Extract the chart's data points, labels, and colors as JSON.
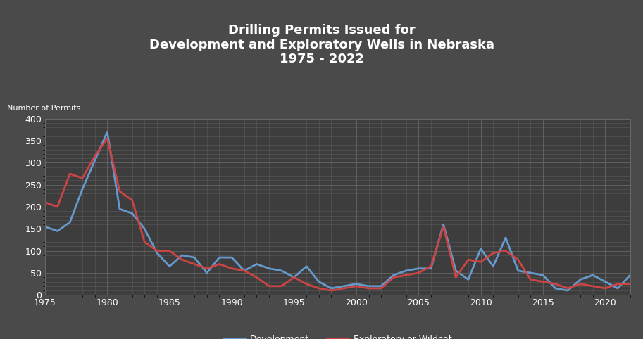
{
  "title": "Drilling Permits Issued for\nDevelopment and Exploratory Wells in Nebraska\n1975 - 2022",
  "ylabel": "Number of Permits",
  "background_color": "#4a4a4a",
  "plot_bg_color": "#3d3d3d",
  "title_color": "#ffffff",
  "label_color": "#ffffff",
  "tick_color": "#ffffff",
  "grid_color": "#666666",
  "years": [
    1975,
    1976,
    1977,
    1978,
    1979,
    1980,
    1981,
    1982,
    1983,
    1984,
    1985,
    1986,
    1987,
    1988,
    1989,
    1990,
    1991,
    1992,
    1993,
    1994,
    1995,
    1996,
    1997,
    1998,
    1999,
    2000,
    2001,
    2002,
    2003,
    2004,
    2005,
    2006,
    2007,
    2008,
    2009,
    2010,
    2011,
    2012,
    2013,
    2014,
    2015,
    2016,
    2017,
    2018,
    2019,
    2020,
    2021,
    2022
  ],
  "development": [
    155,
    145,
    165,
    240,
    305,
    370,
    195,
    185,
    150,
    95,
    65,
    90,
    85,
    50,
    85,
    85,
    55,
    70,
    60,
    55,
    40,
    65,
    30,
    15,
    20,
    25,
    20,
    20,
    45,
    55,
    60,
    60,
    160,
    55,
    35,
    105,
    65,
    130,
    55,
    50,
    45,
    15,
    10,
    35,
    45,
    30,
    15,
    45
  ],
  "exploratory": [
    210,
    200,
    275,
    265,
    315,
    355,
    235,
    215,
    120,
    100,
    100,
    80,
    70,
    60,
    70,
    60,
    55,
    40,
    20,
    20,
    40,
    25,
    15,
    10,
    15,
    20,
    15,
    15,
    40,
    45,
    50,
    65,
    155,
    40,
    80,
    75,
    95,
    100,
    80,
    35,
    30,
    25,
    15,
    25,
    20,
    15,
    25,
    25
  ],
  "dev_color": "#6699cc",
  "exp_color": "#cc4444",
  "ylim": [
    0,
    400
  ],
  "yticks": [
    0,
    50,
    100,
    150,
    200,
    250,
    300,
    350,
    400
  ],
  "xticks": [
    1975,
    1980,
    1985,
    1990,
    1995,
    2000,
    2005,
    2010,
    2015,
    2020
  ],
  "xlim": [
    1975,
    2022
  ],
  "linewidth": 2.0,
  "title_fontsize": 13,
  "tick_fontsize": 9,
  "ylabel_fontsize": 8,
  "legend_fontsize": 9
}
